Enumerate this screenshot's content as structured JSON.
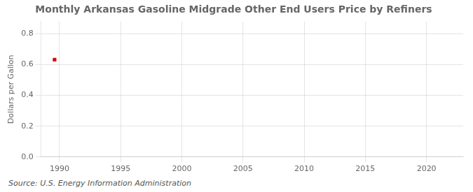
{
  "chart_data": {
    "type": "scatter",
    "title": "Monthly Arkansas Gasoline Midgrade Other End Users Price by Refiners",
    "ylabel": "Dollars per Gallon",
    "source": "Source: U.S. Energy Information Administration",
    "x": [
      1989.6
    ],
    "values": [
      0.632
    ],
    "color": "#cc1111",
    "marker": "square",
    "xlim": [
      1988.5,
      2023
    ],
    "xticks": [
      1990,
      1995,
      2000,
      2005,
      2010,
      2015,
      2020
    ],
    "ylim": [
      0.0,
      0.88
    ],
    "yticks": [
      {
        "value": 0.0,
        "label": "0.0"
      },
      0.2,
      0.4,
      0.6,
      0.8
    ],
    "grid": true
  }
}
